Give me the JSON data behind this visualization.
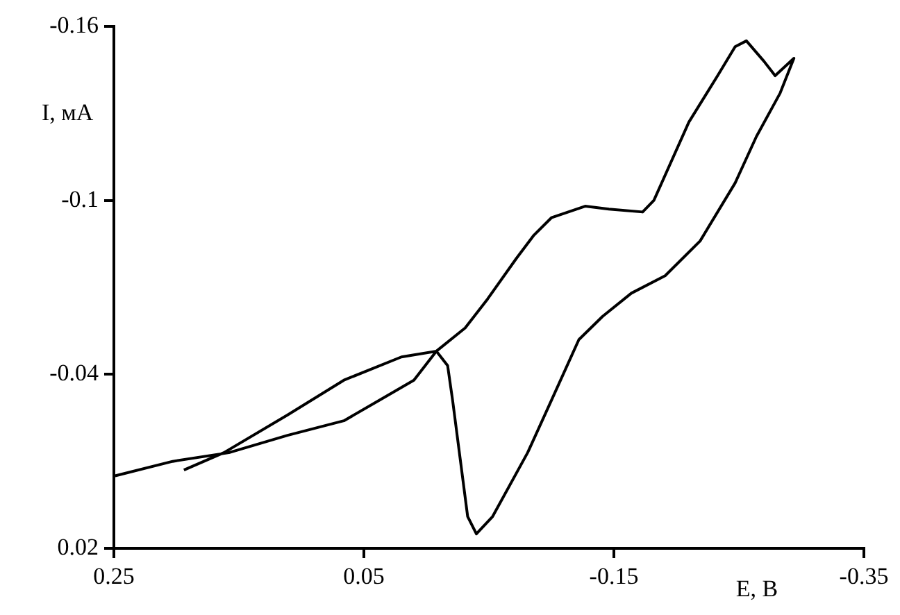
{
  "chart_data": {
    "type": "line",
    "xlabel": "E, B",
    "ylabel": "I, мА",
    "xlim": [
      0.25,
      -0.35
    ],
    "xticks": [
      0.25,
      0.05,
      -0.15,
      -0.35
    ],
    "ylim": [
      0.02,
      -0.16
    ],
    "yticks": [
      -0.16,
      -0.1,
      -0.04,
      0.02
    ],
    "series": [
      {
        "color": "#000000",
        "x": [
          0.194,
          0.162,
          0.111,
          0.066,
          0.02,
          -0.008,
          -0.017,
          -0.021,
          -0.027,
          -0.033,
          -0.04,
          -0.053,
          -0.081,
          -0.1,
          -0.122,
          -0.141,
          -0.164,
          -0.191,
          -0.219,
          -0.247,
          -0.264,
          -0.283,
          -0.294,
          -0.279,
          -0.27,
          -0.256,
          -0.247,
          -0.233,
          -0.21,
          -0.182,
          -0.173,
          -0.146,
          -0.127,
          -0.1,
          -0.086,
          -0.072,
          -0.049,
          -0.031,
          -0.008,
          0.01,
          0.038,
          0.066,
          0.111,
          0.158,
          0.203,
          0.249
        ],
        "values": [
          -0.007,
          -0.013,
          -0.026,
          -0.038,
          -0.046,
          -0.048,
          -0.043,
          -0.031,
          -0.011,
          0.009,
          0.015,
          0.009,
          -0.013,
          -0.031,
          -0.052,
          -0.06,
          -0.068,
          -0.074,
          -0.086,
          -0.106,
          -0.122,
          -0.137,
          -0.149,
          -0.143,
          -0.148,
          -0.155,
          -0.153,
          -0.143,
          -0.127,
          -0.1,
          -0.096,
          -0.097,
          -0.098,
          -0.094,
          -0.088,
          -0.08,
          -0.066,
          -0.056,
          -0.048,
          -0.038,
          -0.031,
          -0.024,
          -0.019,
          -0.013,
          -0.01,
          -0.005
        ]
      }
    ]
  }
}
